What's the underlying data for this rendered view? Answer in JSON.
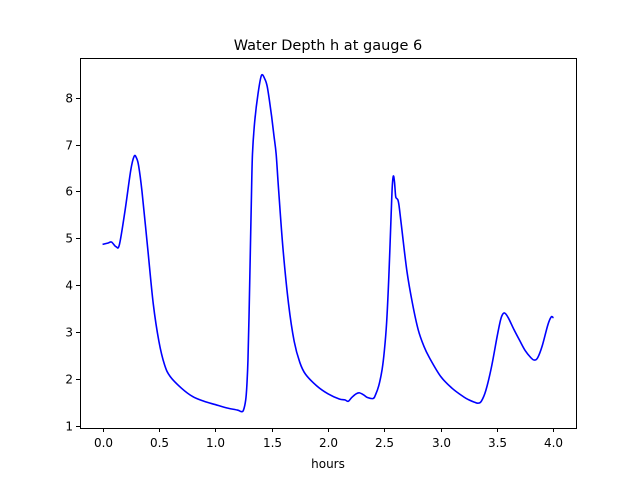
{
  "chart_data": {
    "type": "line",
    "title": "Water Depth h at gauge 6",
    "xlabel": "hours",
    "ylabel": "",
    "xlim": [
      -0.2,
      4.2
    ],
    "ylim": [
      0.95,
      8.85
    ],
    "xticks": [
      0.0,
      0.5,
      1.0,
      1.5,
      2.0,
      2.5,
      3.0,
      3.5,
      4.0
    ],
    "xtick_labels": [
      "0.0",
      "0.5",
      "1.0",
      "1.5",
      "2.0",
      "2.5",
      "3.0",
      "3.5",
      "4.0"
    ],
    "yticks": [
      1,
      2,
      3,
      4,
      5,
      6,
      7,
      8
    ],
    "ytick_labels": [
      "1",
      "2",
      "3",
      "4",
      "5",
      "6",
      "7",
      "8"
    ],
    "grid": false,
    "series": [
      {
        "color": "#0000ff",
        "x": [
          0.0,
          0.05,
          0.08,
          0.12,
          0.15,
          0.2,
          0.25,
          0.28,
          0.3,
          0.32,
          0.35,
          0.4,
          0.45,
          0.5,
          0.55,
          0.6,
          0.7,
          0.8,
          0.9,
          1.0,
          1.1,
          1.2,
          1.23,
          1.25,
          1.27,
          1.28,
          1.29,
          1.3,
          1.31,
          1.32,
          1.33,
          1.35,
          1.38,
          1.41,
          1.44,
          1.46,
          1.48,
          1.5,
          1.52,
          1.54,
          1.56,
          1.6,
          1.65,
          1.7,
          1.75,
          1.8,
          1.9,
          2.0,
          2.1,
          2.15,
          2.18,
          2.21,
          2.25,
          2.28,
          2.32,
          2.35,
          2.4,
          2.42,
          2.45,
          2.48,
          2.5,
          2.52,
          2.54,
          2.56,
          2.57,
          2.58,
          2.59,
          2.6,
          2.61,
          2.62,
          2.63,
          2.65,
          2.7,
          2.75,
          2.8,
          2.85,
          2.9,
          3.0,
          3.1,
          3.2,
          3.25,
          3.3,
          3.33,
          3.36,
          3.4,
          3.45,
          3.5,
          3.53,
          3.55,
          3.57,
          3.6,
          3.65,
          3.7,
          3.75,
          3.8,
          3.83,
          3.86,
          3.9,
          3.95,
          3.98,
          4.0
        ],
        "y": [
          4.87,
          4.9,
          4.92,
          4.82,
          4.87,
          5.6,
          6.45,
          6.75,
          6.72,
          6.55,
          6.0,
          4.8,
          3.6,
          2.8,
          2.3,
          2.05,
          1.8,
          1.62,
          1.52,
          1.45,
          1.38,
          1.33,
          1.3,
          1.33,
          1.55,
          1.85,
          2.4,
          3.4,
          4.6,
          5.8,
          6.8,
          7.5,
          8.1,
          8.48,
          8.4,
          8.25,
          7.95,
          7.6,
          7.2,
          6.8,
          6.1,
          4.8,
          3.6,
          2.8,
          2.35,
          2.1,
          1.85,
          1.68,
          1.57,
          1.55,
          1.52,
          1.6,
          1.68,
          1.7,
          1.65,
          1.6,
          1.58,
          1.65,
          1.85,
          2.2,
          2.6,
          3.2,
          4.2,
          5.5,
          6.1,
          6.33,
          6.2,
          5.9,
          5.85,
          5.82,
          5.7,
          5.3,
          4.3,
          3.6,
          3.05,
          2.7,
          2.45,
          2.05,
          1.8,
          1.62,
          1.55,
          1.5,
          1.48,
          1.52,
          1.75,
          2.25,
          2.9,
          3.25,
          3.38,
          3.4,
          3.3,
          3.05,
          2.82,
          2.6,
          2.45,
          2.4,
          2.45,
          2.7,
          3.15,
          3.32,
          3.3
        ]
      }
    ]
  }
}
